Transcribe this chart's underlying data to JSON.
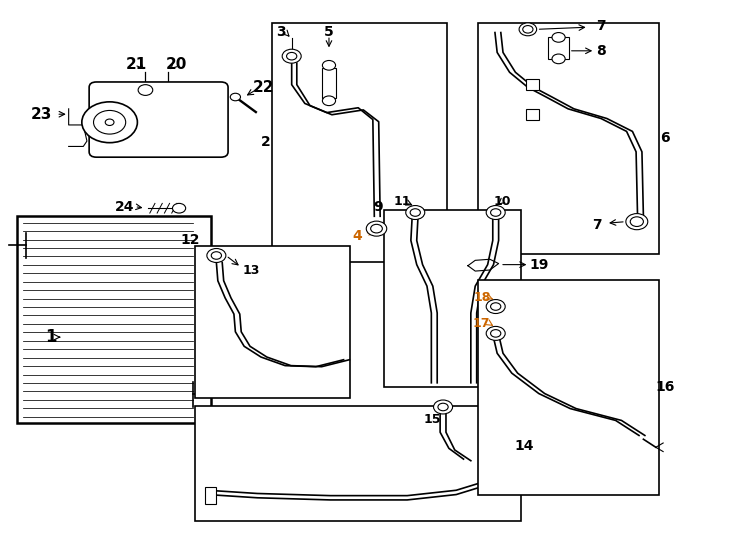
{
  "bg_color": "#ffffff",
  "line_color": "#000000",
  "orange": "#cc6600",
  "fig_width": 7.34,
  "fig_height": 5.4,
  "dpi": 100
}
